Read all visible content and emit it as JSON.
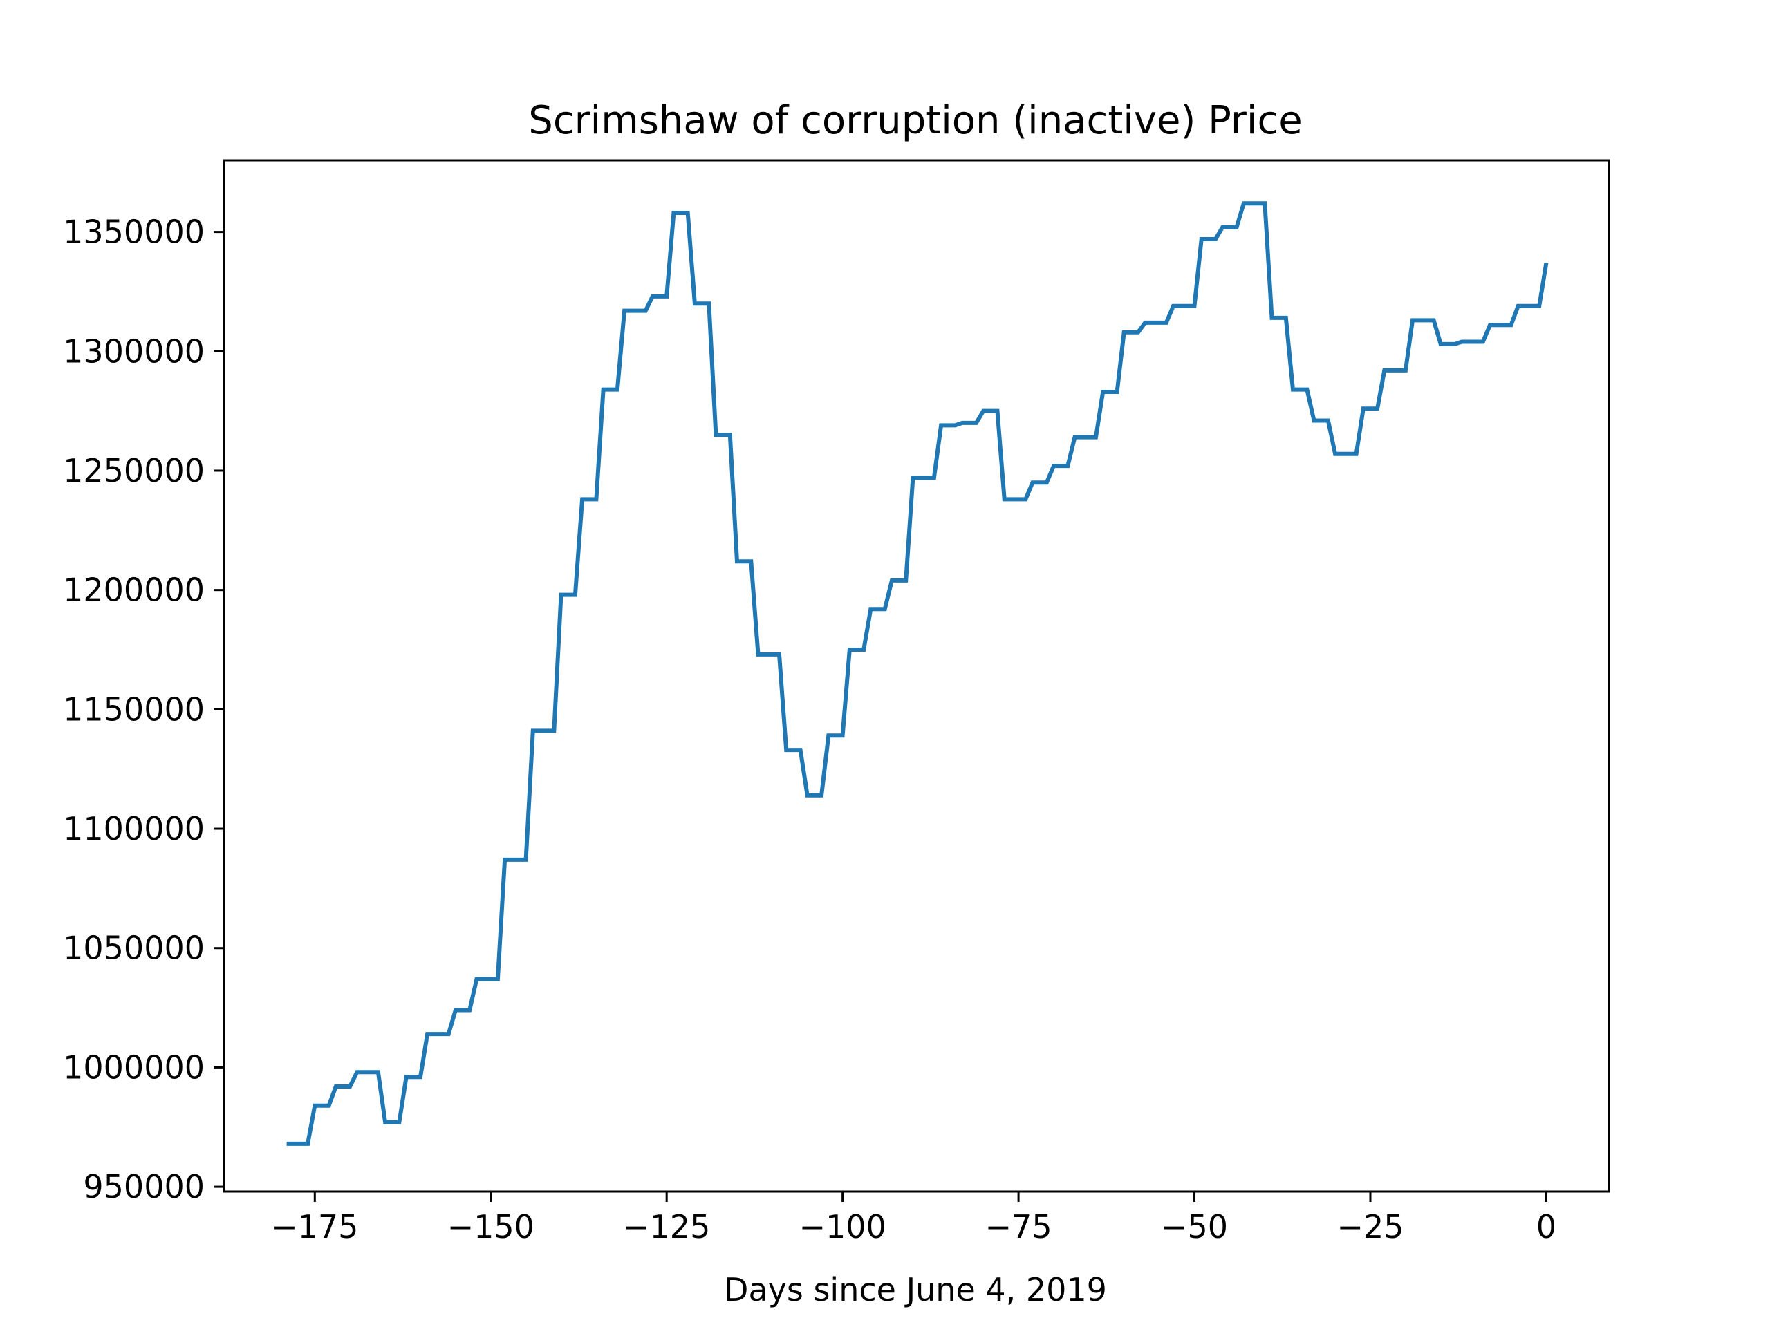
{
  "chart_data": {
    "type": "line",
    "title": "Scrimshaw of corruption (inactive) Price",
    "xlabel": "Days since June 4, 2019",
    "ylabel": "",
    "xlim": [
      -187.9,
      8.9
    ],
    "ylim": [
      948000,
      1380000
    ],
    "xticks": [
      -175,
      -150,
      -125,
      -100,
      -75,
      -50,
      -25,
      0
    ],
    "yticks": [
      950000,
      1000000,
      1050000,
      1100000,
      1150000,
      1200000,
      1250000,
      1300000,
      1350000
    ],
    "grid": false,
    "legend": "none",
    "colors": {
      "series": "#1f77b4",
      "axes": "#000000",
      "background": "#ffffff"
    },
    "series": [
      {
        "points": [
          [
            -179,
            968000
          ],
          [
            -178,
            968000
          ],
          [
            -177,
            968000
          ],
          [
            -176,
            968000
          ],
          [
            -175,
            984000
          ],
          [
            -174,
            984000
          ],
          [
            -173,
            984000
          ],
          [
            -172,
            992000
          ],
          [
            -171,
            992000
          ],
          [
            -170,
            992000
          ],
          [
            -169,
            998000
          ],
          [
            -168,
            998000
          ],
          [
            -167,
            998000
          ],
          [
            -166,
            998000
          ],
          [
            -165,
            977000
          ],
          [
            -164,
            977000
          ],
          [
            -163,
            977000
          ],
          [
            -162,
            996000
          ],
          [
            -161,
            996000
          ],
          [
            -160,
            996000
          ],
          [
            -159,
            1014000
          ],
          [
            -158,
            1014000
          ],
          [
            -157,
            1014000
          ],
          [
            -156,
            1014000
          ],
          [
            -155,
            1024000
          ],
          [
            -154,
            1024000
          ],
          [
            -153,
            1024000
          ],
          [
            -152,
            1037000
          ],
          [
            -151,
            1037000
          ],
          [
            -150,
            1037000
          ],
          [
            -149,
            1037000
          ],
          [
            -148,
            1087000
          ],
          [
            -147,
            1087000
          ],
          [
            -146,
            1087000
          ],
          [
            -145,
            1087000
          ],
          [
            -144,
            1141000
          ],
          [
            -143,
            1141000
          ],
          [
            -142,
            1141000
          ],
          [
            -141,
            1141000
          ],
          [
            -140,
            1198000
          ],
          [
            -139,
            1198000
          ],
          [
            -138,
            1198000
          ],
          [
            -137,
            1238000
          ],
          [
            -136,
            1238000
          ],
          [
            -135,
            1238000
          ],
          [
            -134,
            1284000
          ],
          [
            -133,
            1284000
          ],
          [
            -132,
            1284000
          ],
          [
            -131,
            1317000
          ],
          [
            -130,
            1317000
          ],
          [
            -129,
            1317000
          ],
          [
            -128,
            1317000
          ],
          [
            -127,
            1323000
          ],
          [
            -126,
            1323000
          ],
          [
            -125,
            1323000
          ],
          [
            -124,
            1358000
          ],
          [
            -123,
            1358000
          ],
          [
            -122,
            1358000
          ],
          [
            -121,
            1320000
          ],
          [
            -120,
            1320000
          ],
          [
            -119,
            1320000
          ],
          [
            -118,
            1265000
          ],
          [
            -117,
            1265000
          ],
          [
            -116,
            1265000
          ],
          [
            -115,
            1212000
          ],
          [
            -114,
            1212000
          ],
          [
            -113,
            1212000
          ],
          [
            -112,
            1173000
          ],
          [
            -111,
            1173000
          ],
          [
            -110,
            1173000
          ],
          [
            -109,
            1173000
          ],
          [
            -108,
            1133000
          ],
          [
            -107,
            1133000
          ],
          [
            -106,
            1133000
          ],
          [
            -105,
            1114000
          ],
          [
            -104,
            1114000
          ],
          [
            -103,
            1114000
          ],
          [
            -102,
            1139000
          ],
          [
            -101,
            1139000
          ],
          [
            -100,
            1139000
          ],
          [
            -99,
            1175000
          ],
          [
            -98,
            1175000
          ],
          [
            -97,
            1175000
          ],
          [
            -96,
            1192000
          ],
          [
            -95,
            1192000
          ],
          [
            -94,
            1192000
          ],
          [
            -93,
            1204000
          ],
          [
            -92,
            1204000
          ],
          [
            -91,
            1204000
          ],
          [
            -90,
            1247000
          ],
          [
            -89,
            1247000
          ],
          [
            -88,
            1247000
          ],
          [
            -87,
            1247000
          ],
          [
            -86,
            1269000
          ],
          [
            -85,
            1269000
          ],
          [
            -84,
            1269000
          ],
          [
            -83,
            1270000
          ],
          [
            -82,
            1270000
          ],
          [
            -81,
            1270000
          ],
          [
            -80,
            1275000
          ],
          [
            -79,
            1275000
          ],
          [
            -78,
            1275000
          ],
          [
            -77,
            1238000
          ],
          [
            -76,
            1238000
          ],
          [
            -75,
            1238000
          ],
          [
            -74,
            1238000
          ],
          [
            -73,
            1245000
          ],
          [
            -72,
            1245000
          ],
          [
            -71,
            1245000
          ],
          [
            -70,
            1252000
          ],
          [
            -69,
            1252000
          ],
          [
            -68,
            1252000
          ],
          [
            -67,
            1264000
          ],
          [
            -66,
            1264000
          ],
          [
            -65,
            1264000
          ],
          [
            -64,
            1264000
          ],
          [
            -63,
            1283000
          ],
          [
            -62,
            1283000
          ],
          [
            -61,
            1283000
          ],
          [
            -60,
            1308000
          ],
          [
            -59,
            1308000
          ],
          [
            -58,
            1308000
          ],
          [
            -57,
            1312000
          ],
          [
            -56,
            1312000
          ],
          [
            -55,
            1312000
          ],
          [
            -54,
            1312000
          ],
          [
            -53,
            1319000
          ],
          [
            -52,
            1319000
          ],
          [
            -51,
            1319000
          ],
          [
            -50,
            1319000
          ],
          [
            -49,
            1347000
          ],
          [
            -48,
            1347000
          ],
          [
            -47,
            1347000
          ],
          [
            -46,
            1352000
          ],
          [
            -45,
            1352000
          ],
          [
            -44,
            1352000
          ],
          [
            -43,
            1362000
          ],
          [
            -42,
            1362000
          ],
          [
            -41,
            1362000
          ],
          [
            -40,
            1362000
          ],
          [
            -39,
            1314000
          ],
          [
            -38,
            1314000
          ],
          [
            -37,
            1314000
          ],
          [
            -36,
            1284000
          ],
          [
            -35,
            1284000
          ],
          [
            -34,
            1284000
          ],
          [
            -33,
            1271000
          ],
          [
            -32,
            1271000
          ],
          [
            -31,
            1271000
          ],
          [
            -30,
            1257000
          ],
          [
            -29,
            1257000
          ],
          [
            -28,
            1257000
          ],
          [
            -27,
            1257000
          ],
          [
            -26,
            1276000
          ],
          [
            -25,
            1276000
          ],
          [
            -24,
            1276000
          ],
          [
            -23,
            1292000
          ],
          [
            -22,
            1292000
          ],
          [
            -21,
            1292000
          ],
          [
            -20,
            1292000
          ],
          [
            -19,
            1313000
          ],
          [
            -18,
            1313000
          ],
          [
            -17,
            1313000
          ],
          [
            -16,
            1313000
          ],
          [
            -15,
            1303000
          ],
          [
            -14,
            1303000
          ],
          [
            -13,
            1303000
          ],
          [
            -12,
            1304000
          ],
          [
            -11,
            1304000
          ],
          [
            -10,
            1304000
          ],
          [
            -9,
            1304000
          ],
          [
            -8,
            1311000
          ],
          [
            -7,
            1311000
          ],
          [
            -6,
            1311000
          ],
          [
            -5,
            1311000
          ],
          [
            -4,
            1319000
          ],
          [
            -3,
            1319000
          ],
          [
            -2,
            1319000
          ],
          [
            -1,
            1319000
          ],
          [
            0,
            1337000
          ]
        ]
      }
    ]
  }
}
